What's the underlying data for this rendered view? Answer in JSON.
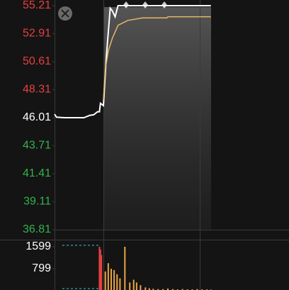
{
  "chart_data": [
    {
      "type": "line",
      "prev_close": 46.01,
      "up_color": "#e5403f",
      "down_color": "#33b24c",
      "flat_color": "#ffffff",
      "xlim": [
        0,
        240
      ],
      "ylim": [
        36.81,
        55.21
      ],
      "yticks": [
        55.21,
        52.91,
        50.61,
        48.31,
        46.01,
        43.71,
        41.41,
        39.11,
        36.81
      ],
      "series": [
        {
          "color": "#ffffff",
          "x": [
            0,
            2,
            10,
            30,
            36,
            40,
            44,
            46,
            47,
            50,
            53,
            57,
            59,
            62,
            65,
            160
          ],
          "values": [
            46.3,
            46.05,
            46.01,
            46.01,
            46.2,
            46.25,
            46.5,
            46.5,
            47.2,
            47.0,
            51.0,
            55.0,
            54.8,
            54.3,
            55.21,
            55.21
          ]
        },
        {
          "color": "#e9b56a",
          "x": [
            50,
            52,
            55,
            59,
            65,
            75,
            90,
            115,
            116,
            160
          ],
          "values": [
            47.5,
            50.0,
            51.5,
            52.5,
            53.6,
            54.0,
            54.2,
            54.2,
            54.3,
            54.3
          ]
        }
      ]
    },
    {
      "type": "bar",
      "xlim": [
        0,
        240
      ],
      "ylim": [
        0,
        1599
      ],
      "yticks": [
        1599,
        799
      ],
      "x": [
        46,
        47,
        48,
        52,
        55,
        58,
        61,
        64,
        67,
        72,
        77,
        81,
        84,
        88,
        93,
        97,
        101,
        106,
        111,
        116,
        121,
        126,
        131,
        136,
        141,
        146,
        151,
        156,
        160
      ],
      "series": [
        {
          "color": "#e5403f",
          "values": [
            1599,
            1500,
            1300,
            null,
            null,
            null,
            null,
            null,
            null,
            null,
            null,
            null,
            null,
            null,
            null,
            null,
            null,
            null,
            null,
            null,
            null,
            null,
            null,
            null,
            null,
            null,
            null,
            null,
            null
          ]
        },
        {
          "color": "#e9a443",
          "values": [
            null,
            null,
            null,
            700,
            1000,
            800,
            750,
            600,
            450,
            1599,
            300,
            400,
            300,
            200,
            120,
            90,
            70,
            60,
            60,
            80,
            60,
            50,
            60,
            50,
            50,
            60,
            50,
            50,
            40
          ]
        }
      ]
    }
  ]
}
